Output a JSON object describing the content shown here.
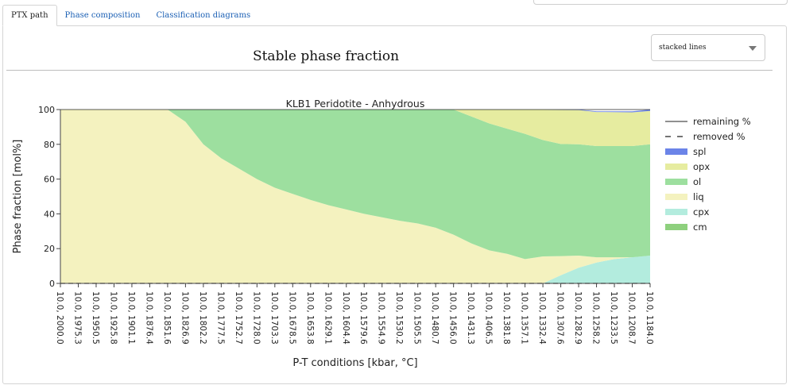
{
  "tabs": [
    {
      "label": "PTX path",
      "active": true
    },
    {
      "label": "Phase composition",
      "active": false
    },
    {
      "label": "Classification diagrams",
      "active": false
    }
  ],
  "panel": {
    "title": "Stable phase fraction",
    "plot_style_select": {
      "value": "stacked lines"
    }
  },
  "chart_data": {
    "type": "area",
    "title": "KLB1 Peridotite - Anhydrous",
    "xlabel": "P-T conditions [kbar, °C]",
    "ylabel": "Phase fraction [mol%]",
    "ylim": [
      0,
      100
    ],
    "yticks": [
      0,
      20,
      40,
      60,
      80,
      100
    ],
    "categories": [
      "10.0, 2000.0",
      "10.0, 1975.3",
      "10.0, 1950.5",
      "10.0, 1925.8",
      "10.0, 1901.1",
      "10.0, 1876.4",
      "10.0, 1851.6",
      "10.0, 1826.9",
      "10.0, 1802.2",
      "10.0, 1777.5",
      "10.0, 1752.7",
      "10.0, 1728.0",
      "10.0, 1703.3",
      "10.0, 1678.5",
      "10.0, 1653.8",
      "10.0, 1629.1",
      "10.0, 1604.4",
      "10.0, 1579.6",
      "10.0, 1554.9",
      "10.0, 1530.2",
      "10.0, 1505.5",
      "10.0, 1480.7",
      "10.0, 1456.0",
      "10.0, 1431.3",
      "10.0, 1406.5",
      "10.0, 1381.8",
      "10.0, 1357.1",
      "10.0, 1332.4",
      "10.0, 1307.6",
      "10.0, 1282.9",
      "10.0, 1258.2",
      "10.0, 1233.5",
      "10.0, 1208.7",
      "10.0, 1184.0"
    ],
    "stacking_order": [
      "cm",
      "cpx",
      "liq",
      "ol",
      "opx",
      "spl"
    ],
    "series": [
      {
        "name": "spl",
        "color": "#6b84e8",
        "values": [
          0,
          0,
          0,
          0,
          0,
          0,
          0,
          0,
          0,
          0,
          0,
          0,
          0,
          0,
          0,
          0,
          0,
          0,
          0,
          0,
          0,
          0,
          0,
          0,
          0,
          0,
          0,
          0,
          0.2,
          0.3,
          0.4,
          0.5,
          0.6,
          0.8
        ]
      },
      {
        "name": "opx",
        "color": "#e6eca0",
        "values": [
          0,
          0,
          0,
          0,
          0,
          0,
          0,
          0,
          0,
          0,
          0,
          0,
          0,
          0,
          0,
          0,
          0,
          0,
          0,
          0,
          0,
          0,
          0,
          4,
          8,
          11,
          14,
          17.5,
          19.6,
          19.7,
          19.6,
          19.5,
          19.4,
          19.2
        ]
      },
      {
        "name": "ol",
        "color": "#9ddf9f",
        "values": [
          0,
          0,
          0,
          0,
          0,
          0,
          0,
          7,
          20,
          28,
          34,
          40,
          45,
          48.5,
          52,
          55,
          57.5,
          60,
          62,
          64,
          65.5,
          68,
          72,
          73,
          73,
          72,
          72,
          67,
          64.5,
          64,
          64,
          64,
          64,
          64
        ]
      },
      {
        "name": "liq",
        "color": "#f4f2bf",
        "values": [
          100,
          100,
          100,
          100,
          100,
          100,
          100,
          93,
          80,
          72,
          66,
          60,
          55,
          51.5,
          48,
          45,
          42.5,
          40,
          38,
          36,
          34.5,
          32,
          28,
          23,
          19,
          17,
          14,
          15.5,
          11,
          7,
          3,
          1,
          0,
          0
        ]
      },
      {
        "name": "cpx",
        "color": "#b3ecde",
        "values": [
          0,
          0,
          0,
          0,
          0,
          0,
          0,
          0,
          0,
          0,
          0,
          0,
          0,
          0,
          0,
          0,
          0,
          0,
          0,
          0,
          0,
          0,
          0,
          0,
          0,
          0,
          0,
          0,
          4.7,
          9,
          12,
          14,
          15,
          16
        ]
      },
      {
        "name": "cm",
        "color": "#8ed07e",
        "values": [
          0,
          0,
          0,
          0,
          0,
          0,
          0,
          0,
          0,
          0,
          0,
          0,
          0,
          0,
          0,
          0,
          0,
          0,
          0,
          0,
          0,
          0,
          0,
          0,
          0,
          0,
          0,
          0,
          0,
          0,
          0,
          0,
          0,
          0
        ]
      }
    ],
    "remaining_percent": [
      100,
      100,
      100,
      100,
      100,
      100,
      100,
      100,
      100,
      100,
      100,
      100,
      100,
      100,
      100,
      100,
      100,
      100,
      100,
      100,
      100,
      100,
      100,
      100,
      100,
      100,
      100,
      100,
      100,
      100,
      100,
      100,
      100,
      100
    ],
    "removed_percent": [
      0,
      0,
      0,
      0,
      0,
      0,
      0,
      0,
      0,
      0,
      0,
      0,
      0,
      0,
      0,
      0,
      0,
      0,
      0,
      0,
      0,
      0,
      0,
      0,
      0,
      0,
      0,
      0,
      0,
      0,
      0,
      0,
      0,
      0
    ],
    "legend": {
      "placement": "right",
      "items": [
        {
          "label": "remaining %",
          "style": "solid-line",
          "color": "#222222"
        },
        {
          "label": "removed %",
          "style": "dashed-line",
          "color": "#222222"
        },
        {
          "label": "spl",
          "style": "swatch",
          "color": "#6b84e8"
        },
        {
          "label": "opx",
          "style": "swatch",
          "color": "#e6eca0"
        },
        {
          "label": "ol",
          "style": "swatch",
          "color": "#9ddf9f"
        },
        {
          "label": "liq",
          "style": "swatch",
          "color": "#f4f2bf"
        },
        {
          "label": "cpx",
          "style": "swatch",
          "color": "#b3ecde"
        },
        {
          "label": "cm",
          "style": "swatch",
          "color": "#8ed07e"
        }
      ]
    }
  }
}
